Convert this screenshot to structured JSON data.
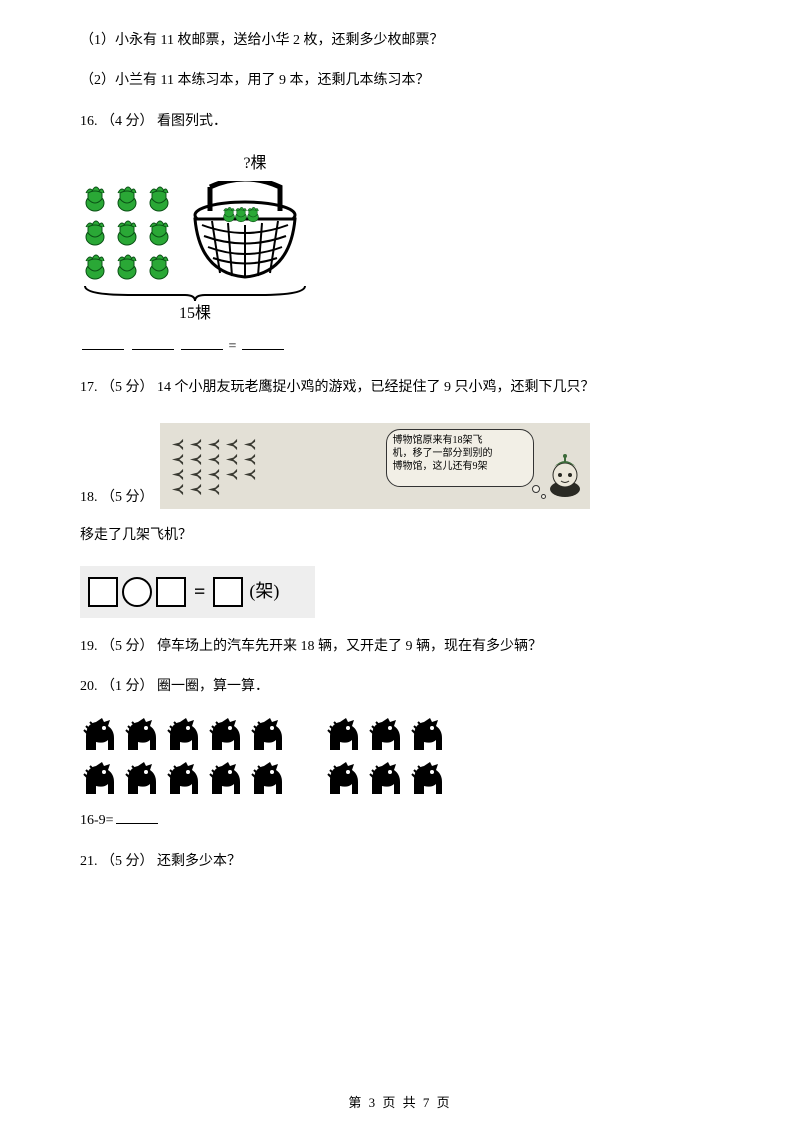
{
  "q_sub1": "（1）小永有 11 枚邮票，送给小华 2 枚，还剩多少枚邮票？",
  "q_sub2": "（2）小兰有 11 本练习本，用了 9 本，还剩几本练习本？",
  "q16": {
    "num": "16.",
    "pts": "（4 分）",
    "text": "看图列式．"
  },
  "basket": {
    "top_label": "?棵",
    "bottom_label": "15棵",
    "veg_color": "#2aa836",
    "basket_color": "#1a1a1a"
  },
  "eq_sign": "=",
  "q17": {
    "num": "17.",
    "pts": "（5 分）",
    "text": " 14 个小朋友玩老鹰捉小鸡的游戏，已经捉住了 9 只小鸡，还剩下几只？"
  },
  "q18": {
    "num": "18.",
    "pts": "（5 分）"
  },
  "planes": {
    "bg": "#e3e0d6",
    "plane_color": "#3a3a32",
    "rows": [
      5,
      5,
      5,
      3
    ],
    "bubble_line1": "博物馆原来有18架飞",
    "bubble_line2": "机，移了一部分到别的",
    "bubble_line3": "博物馆，这儿还有9架"
  },
  "q18_text": "移走了几架飞机？",
  "box_eq_unit": "(架)",
  "q19": {
    "num": "19.",
    "pts": "（5 分）",
    "text": "停车场上的汽车先开来 18 辆，又开走了 9 辆，现在有多少辆？"
  },
  "q20": {
    "num": "20.",
    "pts": "（1 分）",
    "text": "圈一圈，算一算．"
  },
  "horses": {
    "row1": [
      5,
      3
    ],
    "row2": [
      5,
      3
    ],
    "color": "#000000"
  },
  "q20_expr": "16-9=",
  "q21": {
    "num": "21.",
    "pts": "（5 分）",
    "text": "还剩多少本？"
  },
  "footer": {
    "prefix": "第 ",
    "page": "3",
    "mid": " 页 共 ",
    "total": "7",
    "suffix": " 页"
  }
}
